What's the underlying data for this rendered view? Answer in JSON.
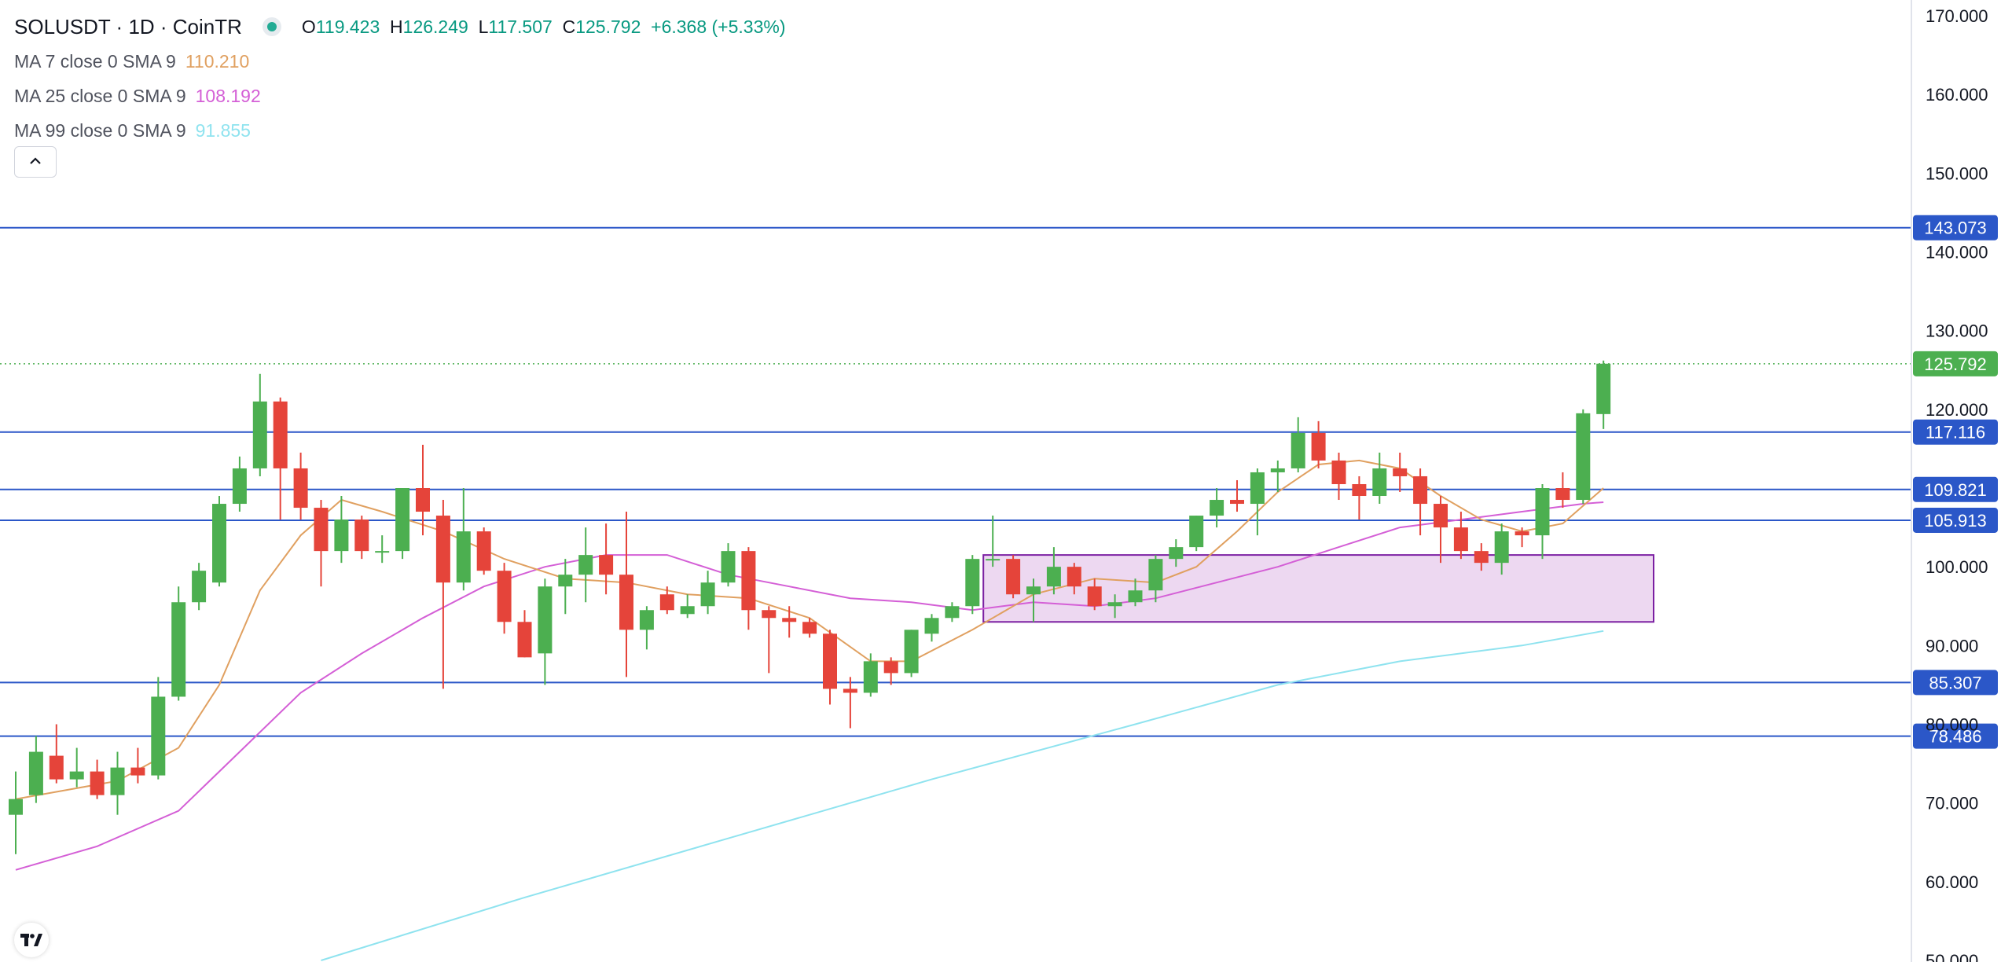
{
  "header": {
    "symbol": "SOLUSDT · 1D · CoinTR",
    "open_label": "O",
    "open": "119.423",
    "high_label": "H",
    "high": "126.249",
    "low_label": "L",
    "low": "117.507",
    "close_label": "C",
    "close": "125.792",
    "change": "+6.368 (+5.33%)"
  },
  "indicators": [
    {
      "label": "MA 7 close 0 SMA 9",
      "value": "110.210",
      "color": "#e0a060"
    },
    {
      "label": "MA 25 close 0 SMA 9",
      "value": "108.192",
      "color": "#d45fd6"
    },
    {
      "label": "MA 99 close 0 SMA 9",
      "value": "91.855",
      "color": "#8fe3ef"
    }
  ],
  "collapse_icon": "chevron-up-icon",
  "logo_icon": "tradingview-logo-icon",
  "colors": {
    "up": "#4caf50",
    "down": "#e5443a",
    "hline": "#2b57c8",
    "price_tag": "#4caf50",
    "zone_fill": "rgba(156,39,176,0.18)",
    "zone_stroke": "#7b1fa2",
    "ma7": "#e0a060",
    "ma25": "#d45fd6",
    "ma99": "#8fe3ef"
  },
  "chart_data": {
    "type": "candlestick",
    "symbol": "SOLUSDT",
    "timeframe": "1D",
    "y_axis": {
      "ticks": [
        "170.000",
        "160.000",
        "150.000",
        "140.000",
        "130.000",
        "120.000",
        "100.000",
        "90.000",
        "80.000",
        "70.000",
        "60.000",
        "50.000"
      ],
      "range": [
        50,
        170
      ]
    },
    "horizontal_lines": [
      "143.073",
      "117.116",
      "109.821",
      "105.913",
      "85.307",
      "78.486"
    ],
    "last_price": "125.792",
    "zone": {
      "from_candle": 48,
      "to_candle": 80,
      "price_low": 93.0,
      "price_high": 101.5
    },
    "candles": [
      {
        "o": 68.5,
        "h": 74.0,
        "l": 63.5,
        "c": 70.5
      },
      {
        "o": 71.0,
        "h": 78.5,
        "l": 70.0,
        "c": 76.5
      },
      {
        "o": 76.0,
        "h": 80.0,
        "l": 72.5,
        "c": 73.0
      },
      {
        "o": 73.0,
        "h": 77.0,
        "l": 72.0,
        "c": 74.0
      },
      {
        "o": 74.0,
        "h": 75.5,
        "l": 70.5,
        "c": 71.0
      },
      {
        "o": 71.0,
        "h": 76.5,
        "l": 68.5,
        "c": 74.5
      },
      {
        "o": 74.5,
        "h": 77.0,
        "l": 72.5,
        "c": 73.5
      },
      {
        "o": 73.5,
        "h": 86.0,
        "l": 73.0,
        "c": 83.5
      },
      {
        "o": 83.5,
        "h": 97.5,
        "l": 83.0,
        "c": 95.5
      },
      {
        "o": 95.5,
        "h": 100.5,
        "l": 94.5,
        "c": 99.5
      },
      {
        "o": 98.0,
        "h": 109.0,
        "l": 97.5,
        "c": 108.0
      },
      {
        "o": 108.0,
        "h": 114.0,
        "l": 107.0,
        "c": 112.5
      },
      {
        "o": 112.5,
        "h": 124.5,
        "l": 111.5,
        "c": 121.0
      },
      {
        "o": 121.0,
        "h": 121.5,
        "l": 106.0,
        "c": 112.5
      },
      {
        "o": 112.5,
        "h": 114.5,
        "l": 106.0,
        "c": 107.5
      },
      {
        "o": 107.5,
        "h": 108.5,
        "l": 97.5,
        "c": 102.0
      },
      {
        "o": 102.0,
        "h": 109.0,
        "l": 100.5,
        "c": 106.0
      },
      {
        "o": 106.0,
        "h": 106.5,
        "l": 101.0,
        "c": 102.0
      },
      {
        "o": 102.0,
        "h": 104.0,
        "l": 100.5,
        "c": 102.0
      },
      {
        "o": 102.0,
        "h": 110.0,
        "l": 101.0,
        "c": 110.0
      },
      {
        "o": 110.0,
        "h": 115.5,
        "l": 104.0,
        "c": 107.0
      },
      {
        "o": 106.5,
        "h": 108.5,
        "l": 84.5,
        "c": 98.0
      },
      {
        "o": 98.0,
        "h": 110.0,
        "l": 97.0,
        "c": 104.5
      },
      {
        "o": 104.5,
        "h": 105.0,
        "l": 99.0,
        "c": 99.5
      },
      {
        "o": 99.5,
        "h": 100.5,
        "l": 91.5,
        "c": 93.0
      },
      {
        "o": 93.0,
        "h": 94.5,
        "l": 88.5,
        "c": 88.5
      },
      {
        "o": 89.0,
        "h": 98.5,
        "l": 85.0,
        "c": 97.5
      },
      {
        "o": 97.5,
        "h": 101.0,
        "l": 94.0,
        "c": 99.0
      },
      {
        "o": 99.0,
        "h": 105.0,
        "l": 95.5,
        "c": 101.5
      },
      {
        "o": 101.5,
        "h": 105.5,
        "l": 96.5,
        "c": 99.0
      },
      {
        "o": 99.0,
        "h": 107.0,
        "l": 86.0,
        "c": 92.0
      },
      {
        "o": 92.0,
        "h": 95.0,
        "l": 89.5,
        "c": 94.5
      },
      {
        "o": 96.5,
        "h": 97.5,
        "l": 94.0,
        "c": 94.5
      },
      {
        "o": 94.0,
        "h": 96.5,
        "l": 93.5,
        "c": 95.0
      },
      {
        "o": 95.0,
        "h": 99.5,
        "l": 94.0,
        "c": 98.0
      },
      {
        "o": 98.0,
        "h": 103.0,
        "l": 97.5,
        "c": 102.0
      },
      {
        "o": 102.0,
        "h": 102.5,
        "l": 92.0,
        "c": 94.5
      },
      {
        "o": 94.5,
        "h": 95.0,
        "l": 86.5,
        "c": 93.5
      },
      {
        "o": 93.5,
        "h": 95.0,
        "l": 91.0,
        "c": 93.0
      },
      {
        "o": 93.0,
        "h": 93.5,
        "l": 91.0,
        "c": 91.5
      },
      {
        "o": 91.5,
        "h": 92.0,
        "l": 82.5,
        "c": 84.5
      },
      {
        "o": 84.5,
        "h": 86.0,
        "l": 79.5,
        "c": 84.0
      },
      {
        "o": 84.0,
        "h": 89.0,
        "l": 83.5,
        "c": 88.0
      },
      {
        "o": 88.0,
        "h": 88.5,
        "l": 85.0,
        "c": 86.5
      },
      {
        "o": 86.5,
        "h": 92.0,
        "l": 86.0,
        "c": 92.0
      },
      {
        "o": 91.5,
        "h": 94.0,
        "l": 90.5,
        "c": 93.5
      },
      {
        "o": 93.5,
        "h": 95.5,
        "l": 93.0,
        "c": 95.0
      },
      {
        "o": 95.0,
        "h": 101.5,
        "l": 94.0,
        "c": 101.0
      },
      {
        "o": 101.0,
        "h": 106.5,
        "l": 100.0,
        "c": 101.0
      },
      {
        "o": 101.0,
        "h": 101.5,
        "l": 96.0,
        "c": 96.5
      },
      {
        "o": 96.5,
        "h": 98.5,
        "l": 93.0,
        "c": 97.5
      },
      {
        "o": 97.5,
        "h": 102.5,
        "l": 96.5,
        "c": 100.0
      },
      {
        "o": 100.0,
        "h": 100.5,
        "l": 96.5,
        "c": 97.5
      },
      {
        "o": 97.5,
        "h": 98.5,
        "l": 94.5,
        "c": 95.0
      },
      {
        "o": 95.0,
        "h": 96.5,
        "l": 93.5,
        "c": 95.5
      },
      {
        "o": 95.5,
        "h": 98.5,
        "l": 95.0,
        "c": 97.0
      },
      {
        "o": 97.0,
        "h": 101.5,
        "l": 95.5,
        "c": 101.0
      },
      {
        "o": 101.0,
        "h": 103.5,
        "l": 100.0,
        "c": 102.5
      },
      {
        "o": 102.5,
        "h": 106.5,
        "l": 102.0,
        "c": 106.5
      },
      {
        "o": 106.5,
        "h": 110.0,
        "l": 105.0,
        "c": 108.5
      },
      {
        "o": 108.5,
        "h": 111.0,
        "l": 107.0,
        "c": 108.0
      },
      {
        "o": 108.0,
        "h": 112.5,
        "l": 104.0,
        "c": 112.0
      },
      {
        "o": 112.0,
        "h": 113.5,
        "l": 109.5,
        "c": 112.5
      },
      {
        "o": 112.5,
        "h": 119.0,
        "l": 112.0,
        "c": 117.0
      },
      {
        "o": 117.0,
        "h": 118.5,
        "l": 112.5,
        "c": 113.5
      },
      {
        "o": 113.5,
        "h": 114.5,
        "l": 108.5,
        "c": 110.5
      },
      {
        "o": 110.5,
        "h": 111.5,
        "l": 106.0,
        "c": 109.0
      },
      {
        "o": 109.0,
        "h": 114.5,
        "l": 108.0,
        "c": 112.5
      },
      {
        "o": 112.5,
        "h": 114.5,
        "l": 109.5,
        "c": 111.5
      },
      {
        "o": 111.5,
        "h": 112.5,
        "l": 104.0,
        "c": 108.0
      },
      {
        "o": 108.0,
        "h": 109.0,
        "l": 100.5,
        "c": 105.0
      },
      {
        "o": 105.0,
        "h": 107.0,
        "l": 101.0,
        "c": 102.0
      },
      {
        "o": 102.0,
        "h": 103.0,
        "l": 99.5,
        "c": 100.5
      },
      {
        "o": 100.5,
        "h": 105.5,
        "l": 99.0,
        "c": 104.5
      },
      {
        "o": 104.5,
        "h": 105.0,
        "l": 102.5,
        "c": 104.0
      },
      {
        "o": 104.0,
        "h": 110.5,
        "l": 101.0,
        "c": 110.0
      },
      {
        "o": 110.0,
        "h": 112.0,
        "l": 107.5,
        "c": 108.5
      },
      {
        "o": 108.5,
        "h": 120.0,
        "l": 108.0,
        "c": 119.5
      },
      {
        "o": 119.4,
        "h": 126.2,
        "l": 117.5,
        "c": 125.8
      }
    ],
    "ma7": [
      [
        0,
        70.5
      ],
      [
        5,
        72.8
      ],
      [
        8,
        77.0
      ],
      [
        10,
        85.0
      ],
      [
        12,
        97.0
      ],
      [
        14,
        104.0
      ],
      [
        16,
        108.5
      ],
      [
        18,
        107.0
      ],
      [
        21,
        104.5
      ],
      [
        24,
        101.0
      ],
      [
        27,
        98.5
      ],
      [
        30,
        98.0
      ],
      [
        33,
        96.5
      ],
      [
        36,
        96.0
      ],
      [
        39,
        93.5
      ],
      [
        42,
        88.0
      ],
      [
        44,
        88.0
      ],
      [
        47,
        92.0
      ],
      [
        50,
        96.5
      ],
      [
        53,
        98.5
      ],
      [
        56,
        98.0
      ],
      [
        58,
        100.0
      ],
      [
        60,
        104.5
      ],
      [
        62,
        109.5
      ],
      [
        64,
        113.0
      ],
      [
        66,
        113.5
      ],
      [
        68,
        112.5
      ],
      [
        70,
        109.0
      ],
      [
        72,
        106.0
      ],
      [
        74,
        104.5
      ],
      [
        76,
        105.5
      ],
      [
        78,
        110.0
      ]
    ],
    "ma25": [
      [
        0,
        61.5
      ],
      [
        4,
        64.5
      ],
      [
        8,
        69.0
      ],
      [
        11,
        76.5
      ],
      [
        14,
        84.0
      ],
      [
        17,
        89.0
      ],
      [
        20,
        93.5
      ],
      [
        23,
        97.5
      ],
      [
        26,
        100.0
      ],
      [
        29,
        101.5
      ],
      [
        32,
        101.5
      ],
      [
        35,
        99.0
      ],
      [
        38,
        97.5
      ],
      [
        41,
        96.0
      ],
      [
        44,
        95.5
      ],
      [
        47,
        94.5
      ],
      [
        50,
        95.5
      ],
      [
        53,
        95.0
      ],
      [
        56,
        96.0
      ],
      [
        59,
        98.0
      ],
      [
        62,
        100.0
      ],
      [
        65,
        102.5
      ],
      [
        68,
        105.0
      ],
      [
        71,
        106.0
      ],
      [
        74,
        107.0
      ],
      [
        77,
        108.0
      ],
      [
        78,
        108.2
      ]
    ],
    "ma99": [
      [
        15,
        50.0
      ],
      [
        25,
        58.0
      ],
      [
        35,
        65.5
      ],
      [
        45,
        73.0
      ],
      [
        55,
        80.0
      ],
      [
        62,
        85.0
      ],
      [
        68,
        88.0
      ],
      [
        74,
        90.0
      ],
      [
        78,
        91.85
      ]
    ]
  }
}
